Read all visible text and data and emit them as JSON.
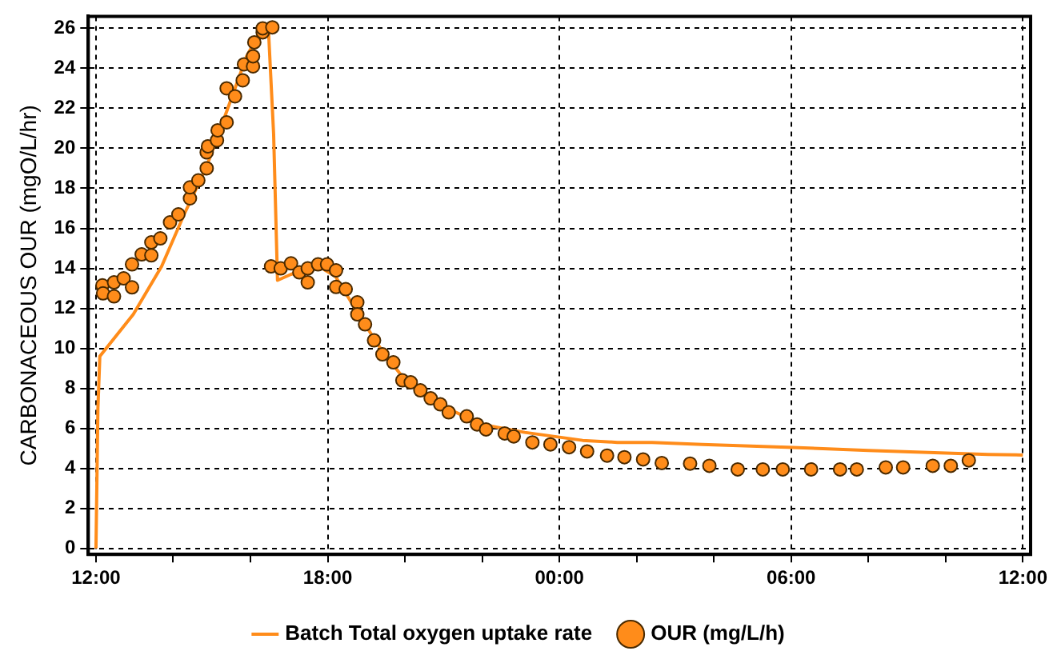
{
  "chart_data": {
    "type": "scatter",
    "ylabel": "CARBONACEOUS OUR (mgO/L/hr)",
    "xlim": [
      "2000-01-01T11:48",
      "2000-01-02T12:12"
    ],
    "ylim": [
      -0.3,
      26.6
    ],
    "xticks": [
      {
        "value": "2000-01-01T12:00",
        "label": "12:00"
      },
      {
        "value": "2000-01-01T14:00",
        "label": null
      },
      {
        "value": "2000-01-01T16:00",
        "label": null
      },
      {
        "value": "2000-01-01T18:00",
        "label": "18:00"
      },
      {
        "value": "2000-01-01T20:00",
        "label": null
      },
      {
        "value": "2000-01-01T22:00",
        "label": null
      },
      {
        "value": "2000-01-02T00:00",
        "label": "00:00"
      },
      {
        "value": "2000-01-02T02:00",
        "label": null
      },
      {
        "value": "2000-01-02T04:00",
        "label": null
      },
      {
        "value": "2000-01-02T06:00",
        "label": "06:00"
      },
      {
        "value": "2000-01-02T08:00",
        "label": null
      },
      {
        "value": "2000-01-02T10:00",
        "label": null
      },
      {
        "value": "2000-01-02T12:00",
        "label": "12:00"
      }
    ],
    "yticks": [
      0,
      2,
      4,
      6,
      8,
      10,
      12,
      14,
      16,
      18,
      20,
      22,
      24,
      26
    ],
    "grid": true,
    "legend": "bottom",
    "series": [
      {
        "name": "Batch Total oxygen uptake rate",
        "type": "line",
        "marker": "none",
        "line_style": "solid",
        "color": "#ff8c1a",
        "x": [
          "2000-01-01T12:00",
          "2000-01-01T12:03",
          "2000-01-01T12:06",
          "2000-01-01T12:58",
          "2000-01-01T13:42",
          "2000-01-01T14:17",
          "2000-01-01T14:52",
          "2000-01-01T15:27",
          "2000-01-01T15:54",
          "2000-01-01T16:18",
          "2000-01-01T16:28",
          "2000-01-01T16:36",
          "2000-01-01T16:42",
          "2000-01-01T17:03",
          "2000-01-01T17:46",
          "2000-01-01T18:12",
          "2000-01-01T18:48",
          "2000-01-01T19:24",
          "2000-01-01T19:58",
          "2000-01-01T20:59",
          "2000-01-01T22:00",
          "2000-01-01T23:06",
          "2000-01-02T00:36",
          "2000-01-02T01:30",
          "2000-01-02T02:24",
          "2000-01-02T03:42",
          "2000-01-02T05:54",
          "2000-01-02T08:00",
          "2000-01-02T11:06",
          "2000-01-02T12:00"
        ],
        "values": [
          0,
          7,
          9.6,
          11.7,
          14.1,
          16.7,
          19.1,
          22.2,
          24.6,
          26.0,
          25.9,
          20.7,
          13.4,
          13.7,
          14.1,
          13.6,
          11.7,
          9.9,
          8.5,
          7.1,
          6.2,
          5.8,
          5.4,
          5.3,
          5.3,
          5.2,
          5.06,
          4.9,
          4.7,
          4.67
        ]
      },
      {
        "name": "OUR (mg/L/h)",
        "marker": "circle",
        "color": "#ff8c1a",
        "x": [
          "2000-01-01T12:10",
          "2000-01-01T12:11",
          "2000-01-01T12:28",
          "2000-01-01T12:28",
          "2000-01-01T12:43",
          "2000-01-01T12:56",
          "2000-01-01T12:56",
          "2000-01-01T13:11",
          "2000-01-01T13:26",
          "2000-01-01T13:26",
          "2000-01-01T13:40",
          "2000-01-01T13:55",
          "2000-01-01T14:08",
          "2000-01-01T14:26",
          "2000-01-01T14:26",
          "2000-01-01T14:39",
          "2000-01-01T14:52",
          "2000-01-01T14:52",
          "2000-01-01T14:54",
          "2000-01-01T15:08",
          "2000-01-01T15:09",
          "2000-01-01T15:23",
          "2000-01-01T15:23",
          "2000-01-01T15:36",
          "2000-01-01T15:48",
          "2000-01-01T15:50",
          "2000-01-01T16:04",
          "2000-01-01T16:04",
          "2000-01-01T16:06",
          "2000-01-01T16:19",
          "2000-01-01T16:19",
          "2000-01-01T16:34",
          "2000-01-01T16:32",
          "2000-01-01T16:47",
          "2000-01-01T17:03",
          "2000-01-01T17:16",
          "2000-01-01T17:29",
          "2000-01-01T17:29",
          "2000-01-01T17:45",
          "2000-01-01T17:59",
          "2000-01-01T18:13",
          "2000-01-01T18:13",
          "2000-01-01T18:28",
          "2000-01-01T18:46",
          "2000-01-01T18:46",
          "2000-01-01T18:58",
          "2000-01-01T19:12",
          "2000-01-01T19:25",
          "2000-01-01T19:42",
          "2000-01-01T19:56",
          "2000-01-01T20:09",
          "2000-01-01T20:24",
          "2000-01-01T20:40",
          "2000-01-01T20:55",
          "2000-01-01T21:08",
          "2000-01-01T21:36",
          "2000-01-01T21:52",
          "2000-01-01T22:06",
          "2000-01-01T22:35",
          "2000-01-01T22:49",
          "2000-01-01T23:18",
          "2000-01-01T23:46",
          "2000-01-02T00:15",
          "2000-01-02T00:43",
          "2000-01-02T01:14",
          "2000-01-02T01:41",
          "2000-01-02T02:10",
          "2000-01-02T02:39",
          "2000-01-02T03:23",
          "2000-01-02T03:53",
          "2000-01-02T04:37",
          "2000-01-02T05:16",
          "2000-01-02T05:47",
          "2000-01-02T06:31",
          "2000-01-02T07:16",
          "2000-01-02T07:42",
          "2000-01-02T08:27",
          "2000-01-02T08:54",
          "2000-01-02T09:40",
          "2000-01-02T10:08",
          "2000-01-02T10:36"
        ],
        "values": [
          13.15,
          12.75,
          12.6,
          13.3,
          13.5,
          13.05,
          14.2,
          14.7,
          14.65,
          15.3,
          15.5,
          16.3,
          16.7,
          17.5,
          18.05,
          18.4,
          19.0,
          19.8,
          20.1,
          20.4,
          20.9,
          21.3,
          23.0,
          22.6,
          23.4,
          24.2,
          24.1,
          24.6,
          25.3,
          25.8,
          26.0,
          26.05,
          14.1,
          14.0,
          14.25,
          13.8,
          13.3,
          14.0,
          14.2,
          14.2,
          13.9,
          13.07,
          12.96,
          12.3,
          11.7,
          11.2,
          10.4,
          9.7,
          9.3,
          8.4,
          8.3,
          7.9,
          7.5,
          7.2,
          6.8,
          6.6,
          6.2,
          5.95,
          5.75,
          5.6,
          5.3,
          5.2,
          5.06,
          4.85,
          4.64,
          4.56,
          4.45,
          4.27,
          4.24,
          4.13,
          3.95,
          3.95,
          3.95,
          3.95,
          3.95,
          3.95,
          4.05,
          4.05,
          4.13,
          4.13,
          4.4
        ]
      }
    ]
  }
}
